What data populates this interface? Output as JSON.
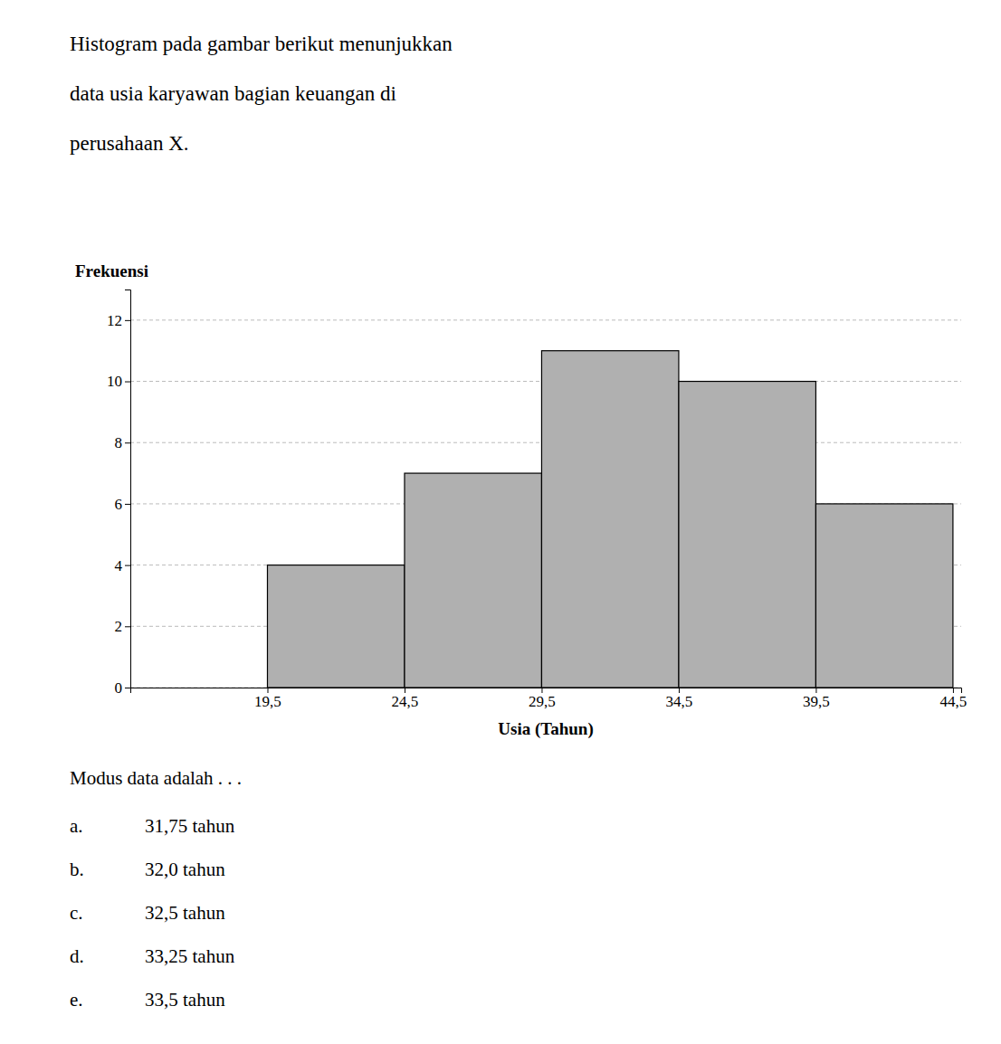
{
  "chart_data": {
    "type": "histogram",
    "title": [
      "Histogram pada gambar berikut menunjukkan",
      "data usia karyawan bagian keuangan di",
      "perusahaan X."
    ],
    "y_label": "Frekuensi",
    "x_label": "Usia (Tahun)",
    "bins": [
      19.5,
      24.5,
      29.5,
      34.5,
      39.5,
      44.5
    ],
    "values": [
      4,
      7,
      11,
      10,
      6
    ],
    "color": "#b0b0b0",
    "xlim": [
      14.5,
      44.8
    ],
    "xticks": [
      {
        "value": 19.5,
        "label": "19,5"
      },
      {
        "value": 24.5,
        "label": "24,5"
      },
      {
        "value": 29.5,
        "label": "29,5"
      },
      {
        "value": 34.5,
        "label": "34,5"
      },
      {
        "value": 39.5,
        "label": "39,5"
      },
      {
        "value": 44.5,
        "label": "44,5"
      }
    ],
    "ylim": [
      0,
      13
    ],
    "yticks": [
      0,
      2,
      4,
      6,
      8,
      10,
      12
    ],
    "grid": true,
    "annotations": [
      "Modus data adalah . . .",
      "a.",
      "31,75 tahun",
      "b.",
      "32,0 tahun",
      "c.",
      "32,5 tahun",
      "d.",
      "33,25 tahun",
      "e.",
      "33,5 tahun"
    ]
  }
}
